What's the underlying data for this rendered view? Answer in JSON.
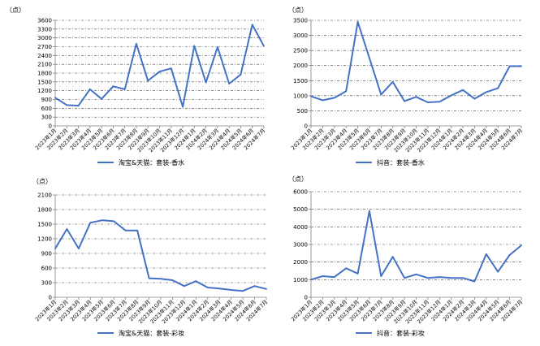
{
  "months": [
    "2023年1月",
    "2023年2月",
    "2023年3月",
    "2023年4月",
    "2023年5月",
    "2023年6月",
    "2023年7月",
    "2023年8月",
    "2023年9月",
    "2023年10月",
    "2023年11月",
    "2023年12月",
    "2024年1月",
    "2024年2月",
    "2024年3月",
    "2024年4月",
    "2024年5月",
    "2024年6月",
    "2024年7月"
  ],
  "colors": {
    "line": "#4472C4",
    "axis": "#808080",
    "grid": "#404040",
    "text": "#000000"
  },
  "chart_data": [
    {
      "type": "line",
      "unit": "（点）",
      "ylim": [
        0,
        3600
      ],
      "yticks": [
        0,
        300,
        600,
        900,
        1200,
        1500,
        1800,
        2100,
        2400,
        2700,
        3000,
        3300,
        3600
      ],
      "grid": true,
      "legend_position": "bottom",
      "series": [
        {
          "name": "淘宝&天猫：套装-香水",
          "values": [
            960,
            710,
            690,
            1250,
            920,
            1350,
            1250,
            2800,
            1540,
            1850,
            1960,
            650,
            2730,
            1480,
            2690,
            1440,
            1750,
            3450,
            2720
          ]
        }
      ]
    },
    {
      "type": "line",
      "unit": "（点）",
      "ylim": [
        0,
        3500
      ],
      "yticks": [
        0,
        500,
        1000,
        1500,
        2000,
        2500,
        3000,
        3500
      ],
      "grid": true,
      "legend_position": "bottom",
      "series": [
        {
          "name": "抖音：套装-香水",
          "values": [
            980,
            850,
            930,
            1150,
            3450,
            2250,
            1040,
            1460,
            820,
            960,
            780,
            800,
            1010,
            1190,
            900,
            1120,
            1250,
            1980,
            1980
          ]
        }
      ]
    },
    {
      "type": "line",
      "unit": "（点）",
      "ylim": [
        0,
        2100
      ],
      "yticks": [
        0,
        300,
        600,
        900,
        1200,
        1500,
        1800,
        2100
      ],
      "grid": true,
      "legend_position": "bottom",
      "series": [
        {
          "name": "淘宝&天猫：套装-彩妆",
          "values": [
            1000,
            1400,
            1000,
            1530,
            1580,
            1560,
            1370,
            1370,
            390,
            380,
            350,
            230,
            330,
            200,
            180,
            150,
            130,
            230,
            170
          ]
        }
      ]
    },
    {
      "type": "line",
      "unit": "（点）",
      "ylim": [
        0,
        6000
      ],
      "yticks": [
        0,
        1000,
        2000,
        3000,
        4000,
        5000,
        6000
      ],
      "grid": true,
      "legend_position": "bottom",
      "series": [
        {
          "name": "抖音：套装-彩妆",
          "values": [
            1000,
            1200,
            1150,
            1650,
            1350,
            4900,
            1200,
            2300,
            1100,
            1300,
            1100,
            1150,
            1100,
            1100,
            900,
            2450,
            1450,
            2400,
            2950
          ]
        }
      ]
    }
  ]
}
